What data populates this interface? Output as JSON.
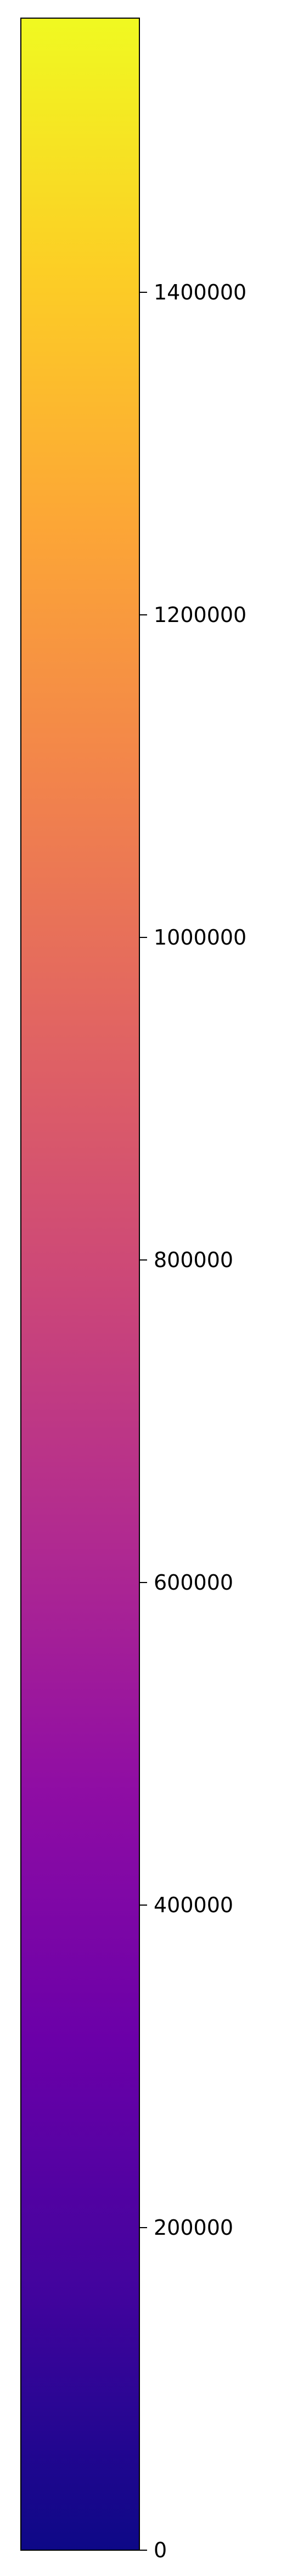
{
  "chart_data": {
    "type": "colorbar",
    "colormap": "plasma",
    "orientation": "vertical",
    "vmin": 0,
    "vmax": 1570000,
    "ticks": [
      {
        "value": 0,
        "label": "0"
      },
      {
        "value": 200000,
        "label": "200000"
      },
      {
        "value": 400000,
        "label": "400000"
      },
      {
        "value": 600000,
        "label": "600000"
      },
      {
        "value": 800000,
        "label": "800000"
      },
      {
        "value": 1000000,
        "label": "1000000"
      },
      {
        "value": 1200000,
        "label": "1200000"
      },
      {
        "value": 1400000,
        "label": "1400000"
      }
    ],
    "color_stops": [
      {
        "frac": 0.0,
        "color": "#0d0887"
      },
      {
        "frac": 0.1,
        "color": "#41049d"
      },
      {
        "frac": 0.2,
        "color": "#6a00a8"
      },
      {
        "frac": 0.3,
        "color": "#8f0da4"
      },
      {
        "frac": 0.4,
        "color": "#b12a90"
      },
      {
        "frac": 0.5,
        "color": "#cc4778"
      },
      {
        "frac": 0.6,
        "color": "#e16462"
      },
      {
        "frac": 0.7,
        "color": "#f2844b"
      },
      {
        "frac": 0.8,
        "color": "#fca636"
      },
      {
        "frac": 0.9,
        "color": "#fcce25"
      },
      {
        "frac": 1.0,
        "color": "#f0f921"
      }
    ]
  }
}
